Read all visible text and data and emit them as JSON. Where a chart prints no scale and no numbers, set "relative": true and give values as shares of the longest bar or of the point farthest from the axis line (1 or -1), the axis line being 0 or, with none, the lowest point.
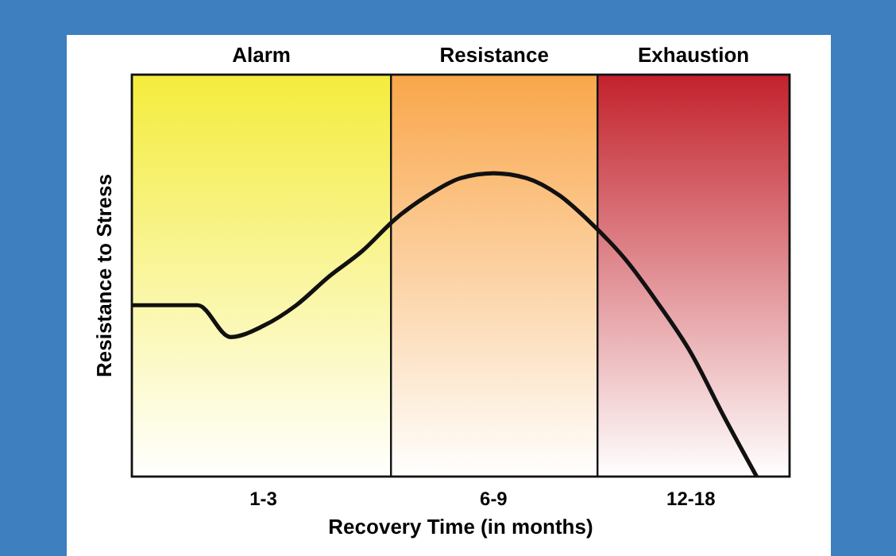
{
  "chart_data": {
    "type": "line",
    "relative": true,
    "xlabel": "Recovery Time (in months)",
    "ylabel": "Resistance to Stress",
    "categories": [
      null,
      null,
      null,
      null,
      "1-3",
      null,
      null,
      null,
      null,
      null,
      null,
      "6-9",
      null,
      null,
      null,
      null,
      null,
      "12-18",
      null,
      null,
      null
    ],
    "annotations": [
      "Alarm",
      "Resistance",
      "Exhaustion"
    ],
    "series": [
      {
        "color": "#111111",
        "values": [
          0.565,
          0.565,
          0.565,
          0.46,
          0.497,
          0.565,
          0.66,
          0.743,
          0.848,
          0.927,
          0.984,
          1,
          0.984,
          0.927,
          0.832,
          0.717,
          0.571,
          0.408,
          0.199,
          0,
          null
        ]
      }
    ]
  }
}
